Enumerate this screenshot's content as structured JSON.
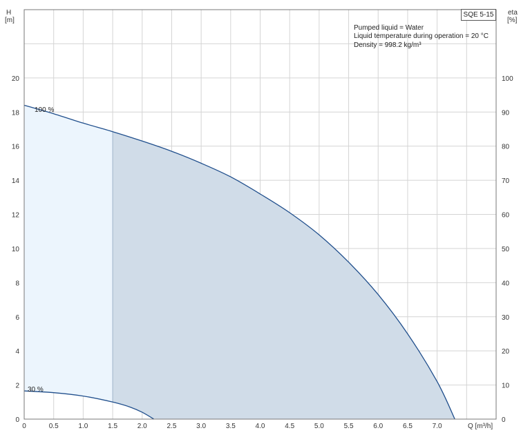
{
  "model_label": "SQE 5-15",
  "notes": [
    "Pumped liquid = Water",
    "Liquid temperature during operation = 20 °C",
    "Density = 998.2 kg/m³"
  ],
  "colors": {
    "curve": "#1f4e8c",
    "fill_main": "#d0dce8",
    "fill_light": "#ecf5fd",
    "grid": "#d4d4d4",
    "frame": "#777777"
  },
  "chart_data": {
    "type": "area",
    "x_axis": {
      "label": "Q [m³/h]",
      "range": [
        0,
        8.0
      ],
      "ticks": [
        0,
        0.5,
        1.0,
        1.5,
        2.0,
        2.5,
        3.0,
        3.5,
        4.0,
        4.5,
        5.0,
        5.5,
        6.0,
        6.5,
        7.0
      ],
      "tick_labels": [
        "0",
        "0.5",
        "1.0",
        "1.5",
        "2.0",
        "2.5",
        "3.0",
        "3.5",
        "4.0",
        "4.5",
        "5.0",
        "5.5",
        "6.0",
        "6.5",
        "7.0"
      ]
    },
    "y_axis_left": {
      "label_top": "H",
      "label_unit": "[m]",
      "range": [
        0,
        24
      ],
      "ticks": [
        0,
        2,
        4,
        6,
        8,
        10,
        12,
        14,
        16,
        18,
        20
      ],
      "tick_labels": [
        "0",
        "2",
        "4",
        "6",
        "8",
        "10",
        "12",
        "14",
        "16",
        "18",
        "20"
      ]
    },
    "y_axis_right": {
      "label_top": "eta",
      "label_unit": "[%]",
      "range": [
        0,
        120
      ],
      "ticks": [
        0,
        10,
        20,
        30,
        40,
        50,
        60,
        70,
        80,
        90,
        100
      ],
      "tick_labels": [
        "0",
        "10",
        "20",
        "30",
        "40",
        "50",
        "60",
        "70",
        "80",
        "90",
        "100"
      ]
    },
    "grid": true,
    "series": [
      {
        "name": "100 %",
        "x": [
          0,
          0.5,
          1.0,
          1.5,
          2.0,
          2.5,
          3.0,
          3.5,
          4.0,
          4.5,
          5.0,
          5.5,
          6.0,
          6.5,
          7.0,
          7.3
        ],
        "y": [
          18.4,
          17.9,
          17.35,
          16.85,
          16.3,
          15.7,
          15.0,
          14.2,
          13.2,
          12.1,
          10.8,
          9.2,
          7.3,
          5.0,
          2.2,
          0.0
        ]
      },
      {
        "name": "30 %",
        "x": [
          0,
          0.5,
          1.0,
          1.5,
          1.8,
          2.0,
          2.2
        ],
        "y": [
          1.65,
          1.55,
          1.35,
          1.0,
          0.7,
          0.4,
          0.0
        ]
      }
    ],
    "shaded_regions": [
      {
        "x_from": 0,
        "x_to": 1.5,
        "style": "light"
      },
      {
        "x_from": 1.5,
        "x_to": 7.3,
        "style": "main"
      }
    ]
  }
}
